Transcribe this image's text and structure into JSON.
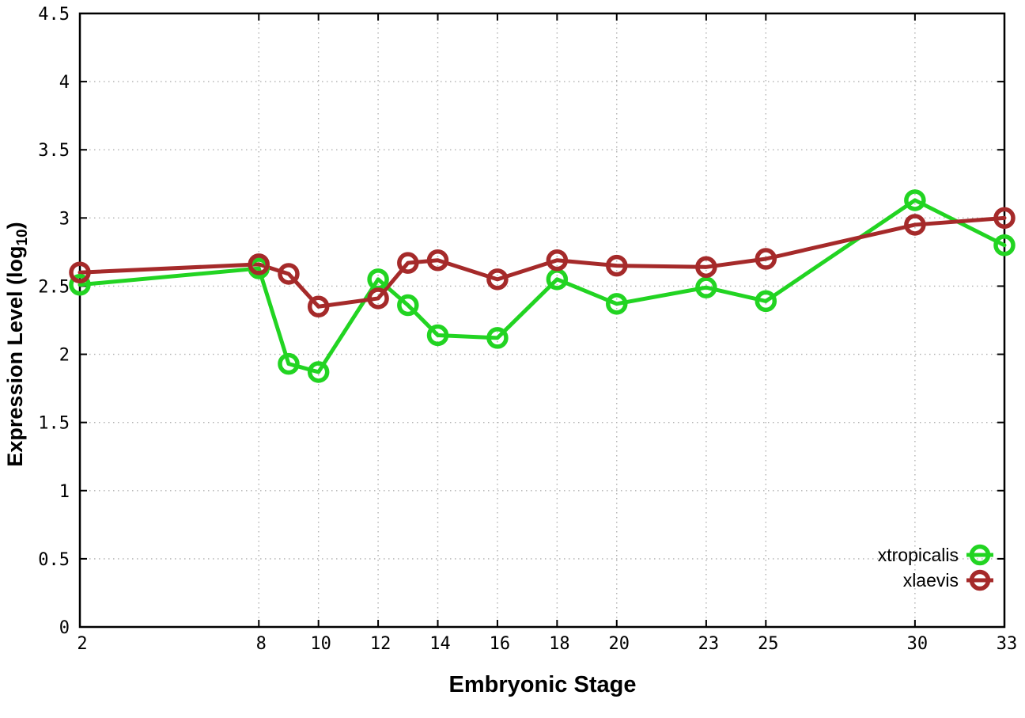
{
  "figure": {
    "background": "#ffffff",
    "border_color": "#000000",
    "grid_color": "#b0b0b0",
    "tick_color": "#000000",
    "text_color": "#000000"
  },
  "y_axis": {
    "title_pre": "Expression Level (log",
    "title_sub": "10",
    "title_post": ")"
  },
  "x_axis": {
    "title": "Embryonic Stage"
  },
  "legend": {
    "entries": [
      "xtropicalis",
      "xlaevis"
    ]
  },
  "chart_data": {
    "type": "line",
    "title": "",
    "xlabel": "Embryonic Stage",
    "ylabel": "Expression Level (log10)",
    "x": [
      2,
      8,
      9,
      10,
      12,
      13,
      14,
      16,
      18,
      20,
      23,
      25,
      30,
      33
    ],
    "series": [
      {
        "name": "xtropicalis",
        "color": "#22d422",
        "marker": "open-circle",
        "values": [
          2.51,
          2.63,
          1.93,
          1.87,
          2.55,
          2.36,
          2.14,
          2.12,
          2.55,
          2.37,
          2.49,
          2.39,
          3.13,
          2.8
        ]
      },
      {
        "name": "xlaevis",
        "color": "#a52a2a",
        "marker": "open-circle",
        "values": [
          2.6,
          2.66,
          2.59,
          2.35,
          2.41,
          2.67,
          2.69,
          2.55,
          2.69,
          2.65,
          2.64,
          2.7,
          2.95,
          3.0
        ]
      }
    ],
    "xlim": [
      2,
      33
    ],
    "ylim": [
      0,
      4.5
    ],
    "xticks": [
      2,
      8,
      10,
      12,
      14,
      16,
      18,
      20,
      23,
      25,
      30,
      33
    ],
    "yticks": [
      0,
      0.5,
      1,
      1.5,
      2,
      2.5,
      3,
      3.5,
      4,
      4.5
    ],
    "grid": true,
    "legend_position": "inside-bottom-right"
  }
}
